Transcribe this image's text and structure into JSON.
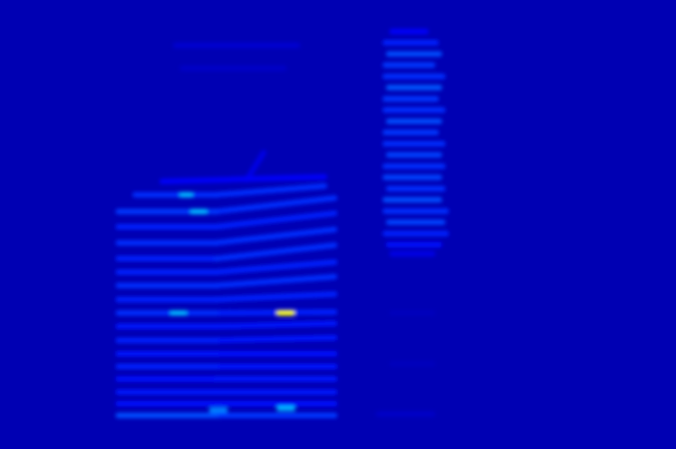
{
  "chart_data": {
    "type": "heatmap",
    "tick_labels": false,
    "grid": false,
    "xlim": [
      0,
      100
    ],
    "ylim": [
      0,
      100
    ],
    "zlim": [
      0,
      1
    ],
    "background": 0.05,
    "streaks": [
      {
        "x": [
          17.5,
          32
        ],
        "y": [
          7.5,
          7.5
        ],
        "value": 0.2
      },
      {
        "x": [
          32,
          49.5
        ],
        "y": [
          7.5,
          7.5
        ],
        "value": 0.18
      },
      {
        "x": [
          17.5,
          32
        ],
        "y": [
          10.1,
          10.1
        ],
        "value": 0.14
      },
      {
        "x": [
          32,
          49.5
        ],
        "y": [
          10.1,
          10.1
        ],
        "value": 0.14
      },
      {
        "x": [
          17.5,
          32
        ],
        "y": [
          12.7,
          12.7
        ],
        "value": 0.15
      },
      {
        "x": [
          32,
          49.5
        ],
        "y": [
          12.7,
          12.7
        ],
        "value": 0.15
      },
      {
        "x": [
          17.5,
          32
        ],
        "y": [
          15.6,
          15.6
        ],
        "value": 0.14
      },
      {
        "x": [
          32,
          49.5
        ],
        "y": [
          15.6,
          15.6
        ],
        "value": 0.15
      },
      {
        "x": [
          17.5,
          32
        ],
        "y": [
          18.4,
          18.4
        ],
        "value": 0.16
      },
      {
        "x": [
          32,
          49.5
        ],
        "y": [
          18.4,
          18.4
        ],
        "value": 0.15
      },
      {
        "x": [
          17.5,
          32
        ],
        "y": [
          21.2,
          21.2
        ],
        "value": 0.15
      },
      {
        "x": [
          32,
          49.5
        ],
        "y": [
          21.2,
          21.2
        ],
        "value": 0.14
      },
      {
        "x": [
          17.5,
          32
        ],
        "y": [
          24.2,
          24.2
        ],
        "value": 0.16
      },
      {
        "x": [
          32,
          49.5
        ],
        "y": [
          24.2,
          24.8
        ],
        "value": 0.15
      },
      {
        "x": [
          17.5,
          32
        ],
        "y": [
          27.3,
          27.3
        ],
        "value": 0.15
      },
      {
        "x": [
          32,
          49.5
        ],
        "y": [
          27.3,
          28
        ],
        "value": 0.15
      },
      {
        "x": [
          17.5,
          32
        ],
        "y": [
          30.3,
          30.3
        ],
        "value": 0.17
      },
      {
        "x": [
          32,
          49.5
        ],
        "y": [
          30.3,
          30.5
        ],
        "value": 0.16
      },
      {
        "x": [
          17.5,
          32
        ],
        "y": [
          33.3,
          33.3
        ],
        "value": 0.16
      },
      {
        "x": [
          32,
          49.5
        ],
        "y": [
          33.3,
          34.5
        ],
        "value": 0.16
      },
      {
        "x": [
          17.5,
          32
        ],
        "y": [
          36.4,
          36.4
        ],
        "value": 0.17
      },
      {
        "x": [
          32,
          49.5
        ],
        "y": [
          36.4,
          38.4
        ],
        "value": 0.17
      },
      {
        "x": [
          17.5,
          32
        ],
        "y": [
          39.4,
          39.4
        ],
        "value": 0.16
      },
      {
        "x": [
          32,
          49.5
        ],
        "y": [
          39.4,
          41.6
        ],
        "value": 0.16
      },
      {
        "x": [
          17.5,
          32
        ],
        "y": [
          42.4,
          42.4
        ],
        "value": 0.16
      },
      {
        "x": [
          32,
          49.5
        ],
        "y": [
          42.4,
          45.4
        ],
        "value": 0.17
      },
      {
        "x": [
          17.5,
          32
        ],
        "y": [
          45.9,
          45.9
        ],
        "value": 0.17
      },
      {
        "x": [
          32,
          49.5
        ],
        "y": [
          45.9,
          48.9
        ],
        "value": 0.17
      },
      {
        "x": [
          17.5,
          32
        ],
        "y": [
          49.5,
          49.5
        ],
        "value": 0.16
      },
      {
        "x": [
          32,
          49.5
        ],
        "y": [
          49.5,
          52.5
        ],
        "value": 0.16
      },
      {
        "x": [
          17.5,
          32
        ],
        "y": [
          52.9,
          52.9
        ],
        "value": 0.18
      },
      {
        "x": [
          32,
          49.5
        ],
        "y": [
          52.9,
          55.9
        ],
        "value": 0.17
      },
      {
        "x": [
          20,
          32
        ],
        "y": [
          56.6,
          56.6
        ],
        "value": 0.17
      },
      {
        "x": [
          32,
          48
        ],
        "y": [
          56.6,
          58.6
        ],
        "value": 0.17
      },
      {
        "x": [
          24,
          48
        ],
        "y": [
          59.6,
          60.6
        ],
        "value": 0.12
      },
      {
        "x": [
          36.5,
          39
        ],
        "y": [
          60,
          66
        ],
        "value": 0.1
      },
      {
        "x": [
          26,
          44
        ],
        "y": [
          89.9,
          89.9
        ],
        "value": 0.08
      },
      {
        "x": [
          27,
          42
        ],
        "y": [
          84.8,
          84.8
        ],
        "value": 0.07
      },
      {
        "x": [
          58,
          63
        ],
        "y": [
          93,
          93
        ],
        "value": 0.12
      },
      {
        "x": [
          57,
          64.5
        ],
        "y": [
          90.5,
          90.5
        ],
        "value": 0.16
      },
      {
        "x": [
          57.5,
          65
        ],
        "y": [
          88,
          88
        ],
        "value": 0.2
      },
      {
        "x": [
          57,
          64
        ],
        "y": [
          85.5,
          85.5
        ],
        "value": 0.18
      },
      {
        "x": [
          57,
          65.5
        ],
        "y": [
          83,
          83
        ],
        "value": 0.17
      },
      {
        "x": [
          57.5,
          65
        ],
        "y": [
          80.5,
          80.5
        ],
        "value": 0.21
      },
      {
        "x": [
          57,
          64.5
        ],
        "y": [
          78,
          78
        ],
        "value": 0.18
      },
      {
        "x": [
          57,
          65.5
        ],
        "y": [
          75.5,
          75.5
        ],
        "value": 0.17
      },
      {
        "x": [
          57.5,
          65
        ],
        "y": [
          73,
          73
        ],
        "value": 0.2
      },
      {
        "x": [
          57,
          64.5
        ],
        "y": [
          70.5,
          70.5
        ],
        "value": 0.18
      },
      {
        "x": [
          57,
          65.5
        ],
        "y": [
          68,
          68
        ],
        "value": 0.17
      },
      {
        "x": [
          57.5,
          65
        ],
        "y": [
          65.5,
          65.5
        ],
        "value": 0.19
      },
      {
        "x": [
          57,
          65.5
        ],
        "y": [
          63,
          63
        ],
        "value": 0.17
      },
      {
        "x": [
          57,
          65
        ],
        "y": [
          60.5,
          60.5
        ],
        "value": 0.19
      },
      {
        "x": [
          57.5,
          65.5
        ],
        "y": [
          58,
          58
        ],
        "value": 0.17
      },
      {
        "x": [
          57,
          65
        ],
        "y": [
          55.5,
          55.5
        ],
        "value": 0.2
      },
      {
        "x": [
          57,
          66
        ],
        "y": [
          53,
          53
        ],
        "value": 0.17
      },
      {
        "x": [
          57.5,
          65.5
        ],
        "y": [
          50.5,
          50.5
        ],
        "value": 0.19
      },
      {
        "x": [
          57,
          66
        ],
        "y": [
          48,
          48
        ],
        "value": 0.16
      },
      {
        "x": [
          57.5,
          65
        ],
        "y": [
          45.5,
          45.5
        ],
        "value": 0.14
      },
      {
        "x": [
          58,
          64
        ],
        "y": [
          43.5,
          43.5
        ],
        "value": 0.1
      },
      {
        "x": [
          58,
          64
        ],
        "y": [
          30.3,
          30.3
        ],
        "value": 0.06
      },
      {
        "x": [
          58,
          64
        ],
        "y": [
          19,
          19
        ],
        "value": 0.06
      },
      {
        "x": [
          56,
          64
        ],
        "y": [
          7.8,
          7.8
        ],
        "value": 0.07
      },
      {
        "x": [
          26.9,
          28.2
        ],
        "y": [
          56.6,
          56.6
        ],
        "value": 0.3
      },
      {
        "x": [
          28.5,
          30.3
        ],
        "y": [
          52.9,
          52.9
        ],
        "value": 0.3
      },
      {
        "x": [
          25.5,
          27.3
        ],
        "y": [
          30.3,
          30.3
        ],
        "value": 0.3
      },
      {
        "x": [
          41.3,
          43.2
        ],
        "y": [
          30.3,
          30.3
        ],
        "value": 0.62
      },
      {
        "x": [
          41.3,
          43.3
        ],
        "y": [
          9.1,
          9.1
        ],
        "value": 0.3
      },
      {
        "x": [
          31.3,
          33.3
        ],
        "y": [
          8.7,
          8.7
        ],
        "value": 0.25
      }
    ]
  }
}
